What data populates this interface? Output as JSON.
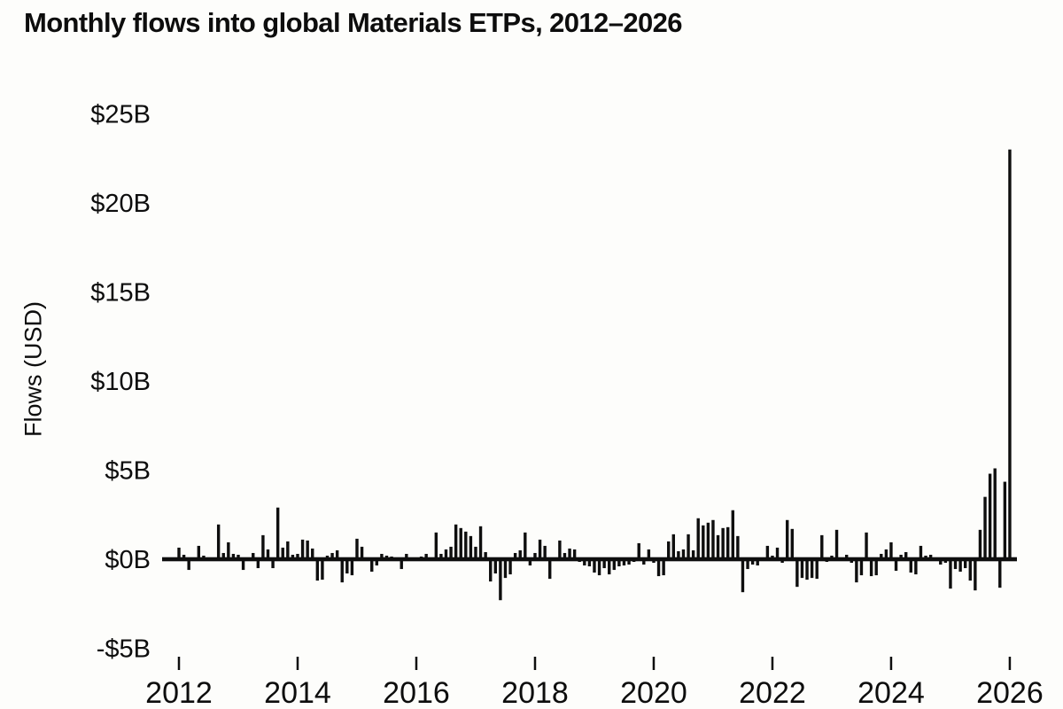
{
  "title": "Monthly flows into global Materials ETPs, 2012–2026",
  "colors": {
    "background": "#fdfdfb",
    "bar": "#0e0e0e",
    "text": "#0d0d0d",
    "zero_line": "#0e0e0e"
  },
  "chart_data": {
    "type": "bar",
    "title": "Monthly flows into global Materials ETPs, 2012–2026",
    "xlabel": "",
    "ylabel": "Flows (USD)",
    "unit": "USD billions",
    "frequency": "monthly",
    "x_start": "2012-01",
    "x_end": "2026-01",
    "grid": false,
    "legend_position": "none",
    "zero_line": true,
    "ylim": [
      -5.5,
      26.5
    ],
    "y_ticks": [
      {
        "label": "$25B",
        "value": 25
      },
      {
        "label": "$20B",
        "value": 20
      },
      {
        "label": "$15B",
        "value": 15
      },
      {
        "label": "$10B",
        "value": 10
      },
      {
        "label": "$5B",
        "value": 5
      },
      {
        "label": "$0B",
        "value": 0
      },
      {
        "label": "-$5B",
        "value": -5
      }
    ],
    "x_ticks": [
      {
        "label": "2012",
        "year": 2012
      },
      {
        "label": "2014",
        "year": 2014
      },
      {
        "label": "2016",
        "year": 2016
      },
      {
        "label": "2018",
        "year": 2018
      },
      {
        "label": "2020",
        "year": 2020
      },
      {
        "label": "2022",
        "year": 2022
      },
      {
        "label": "2024",
        "year": 2024
      },
      {
        "label": "2026",
        "year": 2026
      }
    ],
    "peak": {
      "month": "2026-01",
      "value": 23.0
    },
    "series": [
      {
        "name": "Monthly flows",
        "values": [
          0.65,
          0.25,
          -0.6,
          0.1,
          0.75,
          0.2,
          0.1,
          -0.1,
          1.95,
          0.35,
          0.95,
          0.3,
          0.25,
          -0.6,
          0.1,
          0.35,
          -0.5,
          1.35,
          0.55,
          -0.5,
          2.9,
          0.65,
          1.0,
          0.25,
          0.3,
          1.1,
          1.05,
          0.6,
          -1.2,
          -1.15,
          0.2,
          0.35,
          0.5,
          -1.3,
          -0.8,
          -0.9,
          1.15,
          0.7,
          0.05,
          -0.7,
          -0.35,
          0.3,
          0.2,
          0.15,
          -0.1,
          -0.55,
          0.3,
          0.05,
          0.1,
          0.15,
          0.3,
          0.1,
          1.5,
          0.3,
          0.55,
          0.7,
          1.95,
          1.75,
          1.55,
          1.3,
          0.7,
          1.85,
          0.4,
          -1.25,
          -0.8,
          -2.3,
          -1.05,
          -0.85,
          0.35,
          0.5,
          1.5,
          -0.35,
          0.35,
          1.1,
          0.75,
          -1.1,
          0.05,
          1.05,
          0.35,
          0.6,
          0.55,
          -0.15,
          -0.35,
          -0.4,
          -0.75,
          -0.9,
          -0.5,
          -0.85,
          -0.6,
          -0.4,
          -0.35,
          -0.3,
          -0.15,
          0.9,
          -0.3,
          0.55,
          -0.2,
          -0.95,
          -0.9,
          1.0,
          1.4,
          0.45,
          0.55,
          1.4,
          0.5,
          2.3,
          1.9,
          2.05,
          2.2,
          1.35,
          1.75,
          1.8,
          2.75,
          1.3,
          -1.85,
          -0.55,
          -0.3,
          -0.35,
          0.1,
          0.75,
          0.2,
          0.65,
          -0.2,
          2.2,
          1.7,
          -1.55,
          -1.05,
          -1.15,
          -1.05,
          -1.1,
          1.35,
          -0.15,
          0.2,
          1.65,
          0.1,
          0.25,
          -0.2,
          -1.3,
          -0.9,
          1.5,
          -0.95,
          -0.9,
          0.3,
          0.55,
          0.95,
          -0.65,
          0.25,
          0.4,
          -0.75,
          -0.85,
          0.75,
          0.2,
          0.25,
          0.1,
          -0.3,
          -0.2,
          -1.65,
          -0.55,
          -0.7,
          -0.5,
          -1.2,
          -1.75,
          1.65,
          3.5,
          4.8,
          5.1,
          -1.6,
          4.35,
          23.0
        ]
      }
    ]
  }
}
